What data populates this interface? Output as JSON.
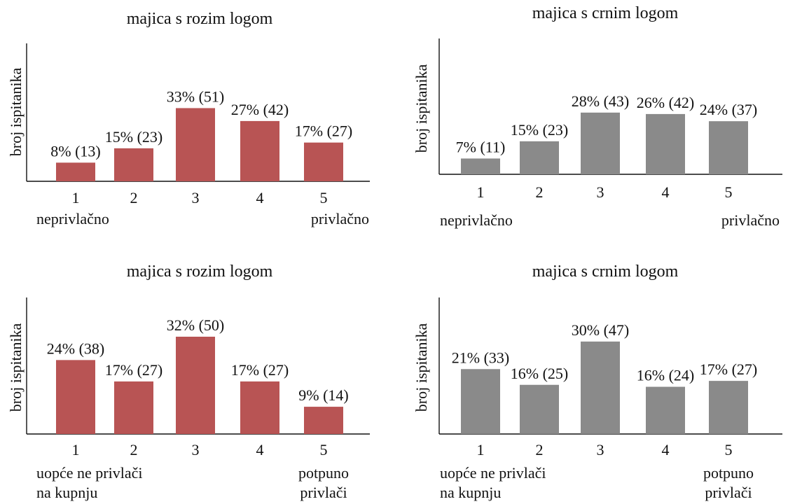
{
  "colors": {
    "pink_logo": "#b85454",
    "black_logo": "#8a8a8a"
  },
  "chart_data": [
    {
      "type": "bar",
      "title": "majica s rozim logom",
      "ylabel": "broj ispitanika",
      "categories": [
        "1",
        "2",
        "3",
        "4",
        "5"
      ],
      "values": [
        13,
        23,
        51,
        42,
        27
      ],
      "percentages": [
        "8%",
        "15%",
        "33%",
        "27%",
        "17%"
      ],
      "data_labels": [
        "8% (13)",
        "15% (23)",
        "33% (51)",
        "27% (42)",
        "17% (27)"
      ],
      "scale_low_label": [
        "neprivlačno"
      ],
      "scale_high_label": [
        "privlačno"
      ],
      "color": "#b85454",
      "ylim": [
        0,
        60
      ]
    },
    {
      "type": "bar",
      "title": "majica s crnim logom",
      "ylabel": "broj ispitanika",
      "categories": [
        "1",
        "2",
        "3",
        "4",
        "5"
      ],
      "values": [
        11,
        23,
        43,
        42,
        37
      ],
      "percentages": [
        "7%",
        "15%",
        "28%",
        "26%",
        "24%"
      ],
      "data_labels": [
        "7% (11)",
        "15% (23)",
        "28% (43)",
        "26% (42)",
        "24% (37)"
      ],
      "scale_low_label": [
        "neprivlačno"
      ],
      "scale_high_label": [
        "privlačno"
      ],
      "color": "#8a8a8a",
      "ylim": [
        0,
        60
      ]
    },
    {
      "type": "bar",
      "title": "majica s rozim logom",
      "ylabel": "broj ispitanika",
      "categories": [
        "1",
        "2",
        "3",
        "4",
        "5"
      ],
      "values": [
        38,
        27,
        50,
        27,
        14
      ],
      "percentages": [
        "24%",
        "17%",
        "32%",
        "17%",
        "9%"
      ],
      "data_labels": [
        "24% (38)",
        "17% (27)",
        "32% (50)",
        "17% (27)",
        "9% (14)"
      ],
      "scale_low_label": [
        "uopće ne privlači",
        "na kupnju"
      ],
      "scale_high_label": [
        "potpuno",
        "privlači"
      ],
      "color": "#b85454",
      "ylim": [
        0,
        60
      ]
    },
    {
      "type": "bar",
      "title": "majica s crnim logom",
      "ylabel": "broj ispitanika",
      "categories": [
        "1",
        "2",
        "3",
        "4",
        "5"
      ],
      "values": [
        33,
        25,
        47,
        24,
        27
      ],
      "percentages": [
        "21%",
        "16%",
        "30%",
        "16%",
        "17%"
      ],
      "data_labels": [
        "21% (33)",
        "16% (25)",
        "30% (47)",
        "16% (24)",
        "17% (27)"
      ],
      "scale_low_label": [
        "uopće ne privlači",
        "na kupnju"
      ],
      "scale_high_label": [
        "potpuno",
        "privlači"
      ],
      "color": "#8a8a8a",
      "ylim": [
        0,
        60
      ]
    }
  ]
}
